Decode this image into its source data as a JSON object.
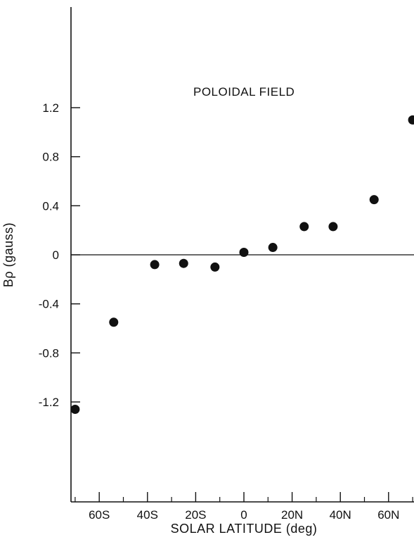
{
  "chart_data": {
    "type": "scatter",
    "title": "",
    "annotation": "POLOIDAL FIELD",
    "xlabel": "SOLAR LATITUDE (deg)",
    "ylabel": "Bρ (gauss)",
    "xlim": [
      -72,
      72
    ],
    "ylim": [
      -2.0,
      2.0
    ],
    "x_ticks": [
      {
        "value": -60,
        "label": "60S"
      },
      {
        "value": -40,
        "label": "40S"
      },
      {
        "value": -20,
        "label": "20S"
      },
      {
        "value": 0,
        "label": "0"
      },
      {
        "value": 20,
        "label": "20N"
      },
      {
        "value": 40,
        "label": "40N"
      },
      {
        "value": 60,
        "label": "60N"
      }
    ],
    "x_minor_ticks": [
      -70,
      -50,
      -30,
      -10,
      10,
      30,
      50,
      70
    ],
    "y_ticks": [
      {
        "value": 1.2,
        "label": "1.2"
      },
      {
        "value": 0.8,
        "label": "0.8"
      },
      {
        "value": 0.4,
        "label": "0.4"
      },
      {
        "value": 0,
        "label": "0"
      },
      {
        "value": -0.4,
        "label": "-0.4"
      },
      {
        "value": -0.8,
        "label": "-0.8"
      },
      {
        "value": -1.2,
        "label": "-1.2"
      }
    ],
    "zero_line": true,
    "grid": false,
    "points": [
      {
        "x": -70,
        "y": -1.26
      },
      {
        "x": -54,
        "y": -0.55
      },
      {
        "x": -37,
        "y": -0.08
      },
      {
        "x": -25,
        "y": -0.07
      },
      {
        "x": -12,
        "y": -0.1
      },
      {
        "x": 0,
        "y": 0.02
      },
      {
        "x": 12,
        "y": 0.06
      },
      {
        "x": 25,
        "y": 0.23
      },
      {
        "x": 37,
        "y": 0.23
      },
      {
        "x": 54,
        "y": 0.45
      },
      {
        "x": 70,
        "y": 1.1
      }
    ]
  }
}
